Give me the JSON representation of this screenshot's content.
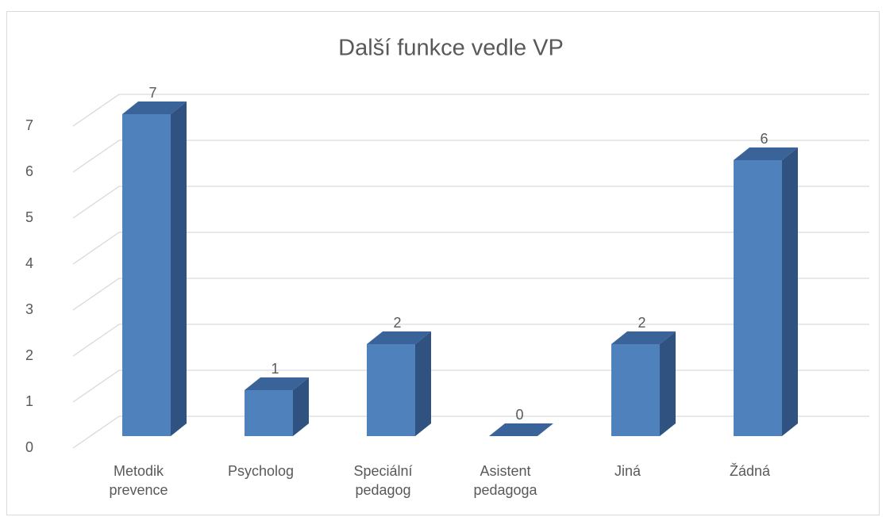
{
  "chart_data": {
    "type": "bar3d",
    "title": "Další funkce vedle VP",
    "categories": [
      "Metodik prevence",
      "Psycholog",
      "Speciální pedagog",
      "Asistent pedagoga",
      "Jiná",
      "Žádná"
    ],
    "values": [
      7,
      1,
      2,
      0,
      2,
      6
    ],
    "color": "#4f81bd",
    "ylim": [
      0,
      7
    ],
    "yticks": [
      0,
      1,
      2,
      3,
      4,
      5,
      6,
      7
    ],
    "grid": true
  }
}
